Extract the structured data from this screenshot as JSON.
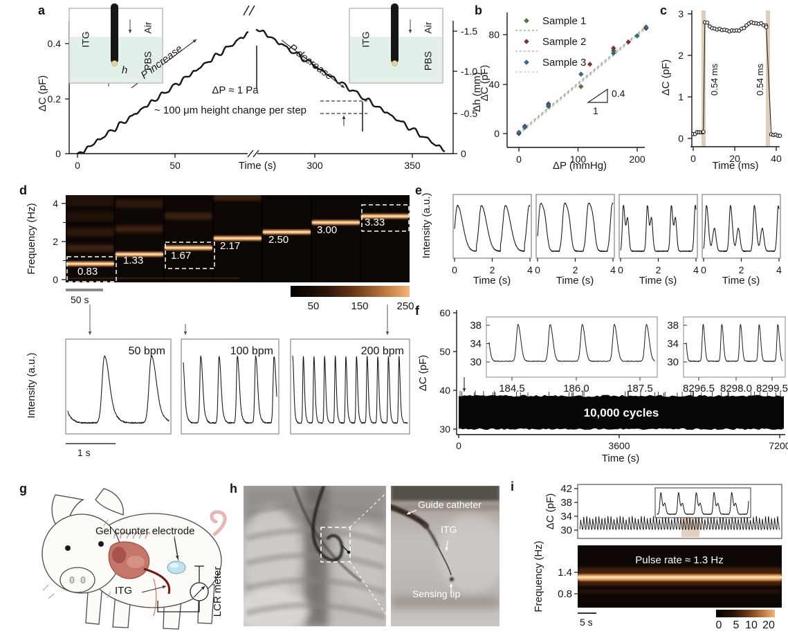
{
  "colors": {
    "spectrogram_hot": "#f2a96b",
    "spectrogram_bg": "#0c0604",
    "highlight_tan": "#d8c0a6",
    "pbs_green": "#e3efe9",
    "sample1": "#4e7c38",
    "sample2": "#8e3039",
    "sample3": "#2e6e8e",
    "fit1": "#8cbf7e",
    "fit2": "#eba3a3",
    "fit3": "#a8d8e8",
    "gel_blue": "#bfe2ef",
    "wire_red": "#6e1a1a"
  },
  "panels": {
    "a": {
      "label": "a",
      "xlabel": "Time (s)",
      "ylabel_left": "ΔC (pF)",
      "ylabel_right": "Δh (mm)",
      "ann_increase": "P increase",
      "ann_decrease": "P decrease",
      "ann_dp": "ΔP ≈ 1 Pa",
      "ann_step": "~ 100 μm height change per step",
      "ann_h": "h",
      "inset_labels": [
        "ITG",
        "Air",
        "PBS"
      ],
      "xticks": [
        "0",
        "50",
        "300",
        "350"
      ],
      "yticks_left": [
        "0.4",
        "0.2",
        "0"
      ],
      "yticks_right": [
        "-1.5",
        "-1.0",
        "-0.5",
        "0"
      ]
    },
    "b": {
      "label": "b",
      "xlabel": "ΔP (mmHg)",
      "ylabel": "ΔC (pF)",
      "legend": [
        "Sample 1",
        "Sample 2",
        "Sample 3"
      ],
      "slope_rise": "0.4",
      "slope_run": "1",
      "xticks": [
        "0",
        "100",
        "200"
      ],
      "yticks": [
        "80",
        "40",
        "0"
      ]
    },
    "c": {
      "label": "c",
      "xlabel": "Time (ms)",
      "ylabel": "ΔC (pF)",
      "band_labels": [
        "0.54 ms",
        "0.54 ms"
      ],
      "xticks": [
        "0",
        "20",
        "40"
      ],
      "yticks": [
        "3",
        "2",
        "1",
        "0"
      ]
    },
    "d": {
      "label": "d",
      "ylabel": "Frequency (Hz)",
      "ytick_labels": [
        "4",
        "2",
        "0"
      ],
      "freq_labels": [
        "0.83",
        "1.33",
        "1.67",
        "2.17",
        "2.50",
        "3.00",
        "3.33"
      ],
      "scalebar": "50 s",
      "colorbar_ticks": [
        "50",
        "150",
        "250"
      ],
      "bpm_labels": [
        "50 bpm",
        "100 bpm",
        "200 bpm"
      ],
      "intensity_label": "Intensity (a.u.)",
      "scalebar2": "1 s"
    },
    "e": {
      "label": "e",
      "ylabel": "Intensity (a.u.)",
      "xlabel": "Time (s)",
      "xtick_labels": [
        "0",
        "2",
        "4"
      ]
    },
    "f": {
      "label": "f",
      "xlabel": "Time (s)",
      "ylabel": "ΔC (pF)",
      "annotation": "10,000 cycles",
      "ytick_labels": [
        "60",
        "50",
        "40",
        "30"
      ],
      "xtick_labels": [
        "0",
        "3600",
        "7200"
      ],
      "inset_yticks": [
        "38",
        "34",
        "30"
      ],
      "inset1_xticks": [
        "184.5",
        "186.0",
        "187.5"
      ],
      "inset2_xticks": [
        "8296.5",
        "8298.0",
        "8299.5"
      ]
    },
    "g": {
      "label": "g",
      "gel": "Gel counter electrode",
      "itg": "ITG",
      "lcr": "LCR meter"
    },
    "h": {
      "label": "h",
      "guide": "Guide catheter",
      "itg": "ITG",
      "tip": "Sensing tip"
    },
    "i": {
      "label": "i",
      "ylabel_top": "ΔC (pF)",
      "ylabel_bottom": "Frequency (Hz)",
      "pulse": "Pulse rate ≈ 1.3 Hz",
      "scalebar": "5 s",
      "ytick_top": [
        "42",
        "38",
        "34",
        "30"
      ],
      "ytick_bottom": [
        "1.4",
        "0.8"
      ],
      "colorbar_ticks": [
        "0",
        "5",
        "10",
        "20"
      ]
    }
  },
  "chart_data": [
    {
      "panel": "a",
      "type": "line",
      "xlabel": "Time (s)",
      "ylabel": "ΔC (pF)",
      "y2label": "Δh (mm)",
      "xticks": [
        0,
        50,
        300,
        350
      ],
      "x_axis_break_between": [
        50,
        300
      ],
      "yticks_left": [
        0,
        0.2,
        0.4
      ],
      "yticks_right": [
        0,
        -0.5,
        -1.0,
        -1.5
      ],
      "ylim_left": [
        0,
        0.5
      ],
      "peak_dC_pF": 0.46,
      "steps_up": 16,
      "steps_down": 16,
      "step_height_um": 100,
      "step_pressure_Pa": 1,
      "annotations": [
        "P increase",
        "P decrease",
        "ΔP ≈ 1 Pa",
        "~ 100 μm height change per step",
        "h"
      ]
    },
    {
      "panel": "b",
      "type": "scatter",
      "xlabel": "ΔP (mmHg)",
      "ylabel": "ΔC (pF)",
      "xticks": [
        0,
        100,
        200
      ],
      "yticks": [
        0,
        40,
        80
      ],
      "fit_slope_pF_per_mmHg": 0.4,
      "series": [
        {
          "name": "Sample 1",
          "color": "#4e7c38",
          "x": [
            0,
            10,
            50,
            105,
            160,
            185,
            215
          ],
          "y": [
            0,
            5,
            22,
            38,
            67,
            74,
            86
          ]
        },
        {
          "name": "Sample 2",
          "color": "#8e3039",
          "x": [
            0,
            10,
            50,
            120,
            160,
            185,
            215
          ],
          "y": [
            0,
            6,
            24,
            56,
            69,
            74,
            85
          ]
        },
        {
          "name": "Sample 3",
          "color": "#2e6e8e",
          "x": [
            0,
            10,
            50,
            105,
            160,
            200,
            215
          ],
          "y": [
            1,
            5,
            23,
            48,
            65,
            79,
            86
          ]
        }
      ]
    },
    {
      "panel": "c",
      "type": "line",
      "xlabel": "Time (ms)",
      "ylabel": "ΔC (pF)",
      "xticks": [
        0,
        20,
        40
      ],
      "yticks": [
        0,
        1,
        2,
        3
      ],
      "baseline_pF": 0.15,
      "plateau_pF": 2.7,
      "rise_at_ms": 5,
      "fall_at_ms": 37,
      "response_time_ms": 0.54
    },
    {
      "panel": "d",
      "type": "heatmap",
      "ylabel": "Frequency (Hz)",
      "yticks": [
        0,
        2,
        4
      ],
      "segment_fundamentals_Hz": [
        0.83,
        1.33,
        1.67,
        2.17,
        2.5,
        3.0,
        3.33
      ],
      "boxed_segments_Hz": [
        0.83,
        1.67,
        3.33
      ],
      "time_scalebar_s": 50,
      "colorbar_ticks": [
        50,
        150,
        250
      ],
      "insets": [
        {
          "label": "50 bpm",
          "peaks": 2
        },
        {
          "label": "100 bpm",
          "peaks": 5
        },
        {
          "label": "200 bpm",
          "peaks": 11
        }
      ],
      "inset_scalebar_s": 1,
      "inset_ylabel": "Intensity (a.u.)"
    },
    {
      "panel": "e",
      "type": "line",
      "ylabel": "Intensity (a.u.)",
      "xlabel": "Time (s)",
      "xticks": [
        0,
        2,
        4
      ],
      "xlim": [
        0,
        4.5
      ],
      "subplots": [
        {
          "pulses": 3,
          "shape": "smooth single peak"
        },
        {
          "pulses": 3,
          "shape": "peak with shoulder"
        },
        {
          "pulses": 3,
          "shape": "sharp double peak"
        },
        {
          "pulses": 3,
          "shape": "main peak with separate secondary bump"
        }
      ]
    },
    {
      "panel": "f",
      "type": "line",
      "xlabel": "Time (s)",
      "ylabel": "ΔC (pF)",
      "xticks": [
        0,
        3600,
        7200
      ],
      "yticks": [
        30,
        40,
        50,
        60
      ],
      "cycles": 10000,
      "envelope_pF": [
        30,
        38.5
      ],
      "insets": [
        {
          "xticks": [
            184.5,
            186.0,
            187.5
          ],
          "yticks": [
            30,
            34,
            38
          ],
          "peaks": 5,
          "baseline_pF": 30.3,
          "peak_pF": 38.2
        },
        {
          "xticks": [
            8296.5,
            8298.0,
            8299.5
          ],
          "yticks": [
            30,
            34,
            38
          ],
          "peaks": 5,
          "baseline_pF": 30.3,
          "peak_pF": 38.4
        }
      ]
    },
    {
      "panel": "i",
      "type": "line+heatmap",
      "top": {
        "ylabel": "ΔC (pF)",
        "yticks": [
          30,
          34,
          38,
          42
        ],
        "signal_range_pF": [
          30,
          34
        ]
      },
      "bottom": {
        "ylabel": "Frequency (Hz)",
        "yticks": [
          0.8,
          1.4
        ],
        "band_Hz": 1.3
      },
      "pulse_rate_Hz": 1.3,
      "time_scalebar_s": 5,
      "colorbar_ticks": [
        0,
        5,
        10,
        20
      ]
    }
  ]
}
